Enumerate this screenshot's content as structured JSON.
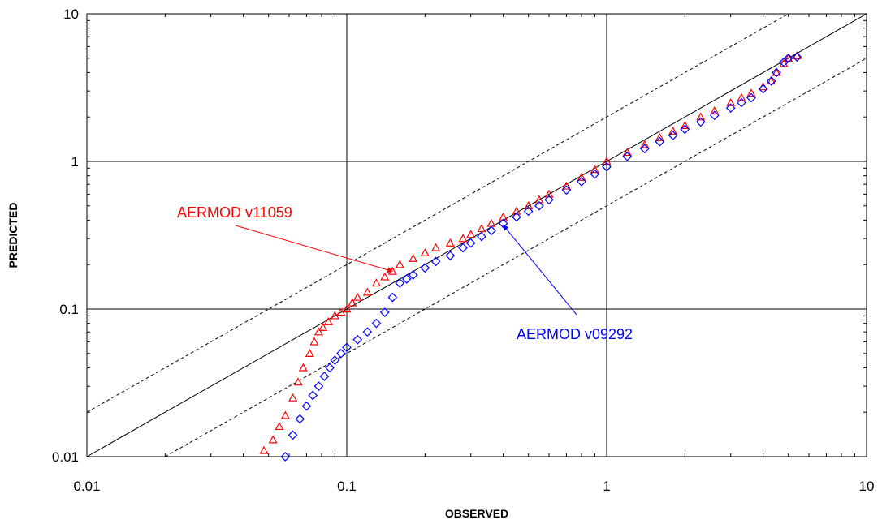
{
  "chart_data": {
    "type": "scatter",
    "xlabel": "OBSERVED",
    "ylabel": "PREDICTED",
    "xscale": "log",
    "yscale": "log",
    "xlim": [
      0.01,
      10
    ],
    "ylim": [
      0.01,
      10
    ],
    "grid": true,
    "x_tick_labels": [
      "0.01",
      "0.1",
      "1",
      "10"
    ],
    "y_tick_labels": [
      "0.01",
      "0.1",
      "1",
      "10"
    ],
    "reference_lines": [
      {
        "kind": "1:1",
        "style": "solid"
      },
      {
        "kind": "factor-of-2 over",
        "style": "dashed"
      },
      {
        "kind": "factor-of-2 under",
        "style": "dashed"
      }
    ],
    "series": [
      {
        "name": "AERMOD v11059",
        "color": "#ff0000",
        "marker": "triangle",
        "x": [
          0.048,
          0.052,
          0.055,
          0.058,
          0.062,
          0.065,
          0.068,
          0.072,
          0.075,
          0.078,
          0.081,
          0.085,
          0.09,
          0.095,
          0.1,
          0.105,
          0.11,
          0.12,
          0.13,
          0.14,
          0.15,
          0.16,
          0.18,
          0.2,
          0.22,
          0.25,
          0.28,
          0.3,
          0.33,
          0.36,
          0.4,
          0.45,
          0.5,
          0.55,
          0.6,
          0.7,
          0.8,
          0.9,
          1.0,
          1.2,
          1.4,
          1.6,
          1.8,
          2.0,
          2.3,
          2.6,
          3.0,
          3.3,
          3.6,
          4.0,
          4.3,
          4.5,
          4.8,
          5.0,
          5.4
        ],
        "y": [
          0.011,
          0.013,
          0.016,
          0.019,
          0.025,
          0.032,
          0.04,
          0.05,
          0.06,
          0.07,
          0.075,
          0.082,
          0.09,
          0.095,
          0.1,
          0.11,
          0.12,
          0.13,
          0.15,
          0.165,
          0.18,
          0.2,
          0.22,
          0.24,
          0.26,
          0.28,
          0.3,
          0.32,
          0.35,
          0.38,
          0.42,
          0.46,
          0.5,
          0.55,
          0.6,
          0.68,
          0.78,
          0.88,
          1.0,
          1.15,
          1.3,
          1.45,
          1.6,
          1.75,
          2.0,
          2.2,
          2.5,
          2.7,
          2.9,
          3.2,
          3.5,
          4.0,
          4.6,
          5.0,
          5.2
        ]
      },
      {
        "name": "AERMOD v09292",
        "color": "#0000ff",
        "marker": "diamond",
        "x": [
          0.058,
          0.062,
          0.066,
          0.07,
          0.074,
          0.078,
          0.082,
          0.086,
          0.09,
          0.095,
          0.1,
          0.11,
          0.12,
          0.13,
          0.14,
          0.15,
          0.16,
          0.17,
          0.18,
          0.2,
          0.22,
          0.25,
          0.28,
          0.3,
          0.33,
          0.36,
          0.4,
          0.45,
          0.5,
          0.55,
          0.6,
          0.7,
          0.8,
          0.9,
          1.0,
          1.2,
          1.4,
          1.6,
          1.8,
          2.0,
          2.3,
          2.6,
          3.0,
          3.3,
          3.6,
          4.0,
          4.3,
          4.5,
          4.8,
          5.0,
          5.4
        ],
        "y": [
          0.01,
          0.014,
          0.018,
          0.022,
          0.026,
          0.03,
          0.035,
          0.04,
          0.045,
          0.05,
          0.055,
          0.062,
          0.07,
          0.08,
          0.095,
          0.12,
          0.15,
          0.16,
          0.17,
          0.19,
          0.21,
          0.23,
          0.26,
          0.28,
          0.31,
          0.34,
          0.38,
          0.42,
          0.46,
          0.5,
          0.55,
          0.64,
          0.73,
          0.82,
          0.92,
          1.08,
          1.22,
          1.36,
          1.5,
          1.65,
          1.85,
          2.05,
          2.3,
          2.5,
          2.7,
          3.1,
          3.5,
          4.0,
          4.7,
          5.0,
          5.1
        ]
      }
    ],
    "annotations": [
      {
        "text": "AERMOD v11059",
        "color": "#ff0000",
        "arrow_to": [
          0.15,
          0.18
        ]
      },
      {
        "text": "AERMOD v09292",
        "color": "#0000ff",
        "arrow_to": [
          0.4,
          0.37
        ]
      }
    ]
  }
}
